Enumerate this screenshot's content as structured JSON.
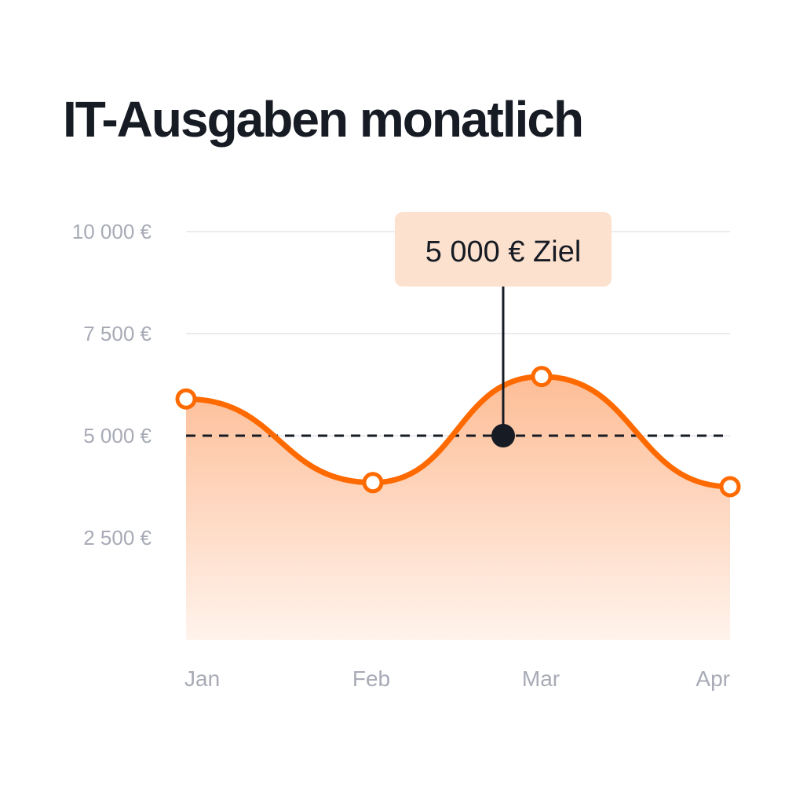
{
  "title": "IT-Ausgaben monatlich",
  "colors": {
    "line": "#ff6a00",
    "area_top": "#fdbd96",
    "area_bottom": "#fff3ec",
    "grid": "#ececef",
    "target": "#161b24",
    "callout_bg": "#fde1cf",
    "axis_text": "#a8abb6"
  },
  "chart_data": {
    "type": "area",
    "categories": [
      "Jan",
      "Feb",
      "Mar",
      "Apr"
    ],
    "values": [
      5900,
      3850,
      6450,
      3750
    ],
    "ylim": [
      0,
      10000
    ],
    "yticks": [
      2500,
      5000,
      7500,
      10000
    ],
    "ytick_labels": [
      "2 500 €",
      "5 000 €",
      "7 500 €",
      "10 000 €"
    ],
    "grid": true,
    "smooth": true,
    "target": {
      "value": 5000,
      "label": "5 000 € Ziel"
    },
    "xlabel": "",
    "ylabel": ""
  }
}
